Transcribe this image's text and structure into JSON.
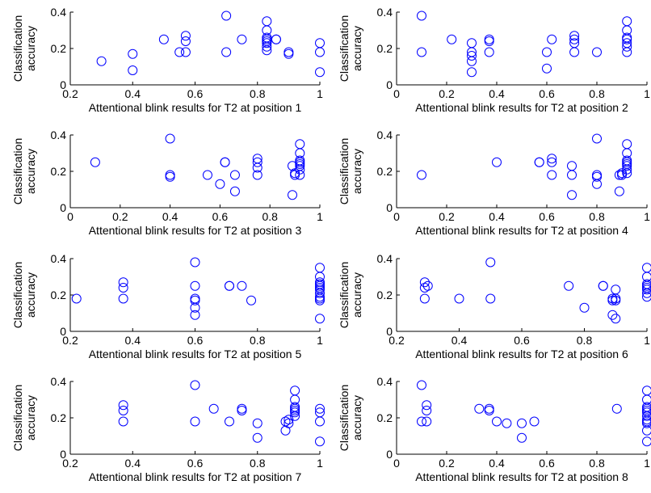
{
  "chart_data": [
    {
      "type": "scatter",
      "xlabel": "Attentional blink results for T2 at position 1",
      "ylabel": "Classification accuracy",
      "xlim": [
        0.2,
        1
      ],
      "ylim": [
        0,
        0.4
      ],
      "xticks": [
        "0.2",
        "0.4",
        "0.6",
        "0.8",
        "1"
      ],
      "yticks": [
        "0",
        "0.2",
        "0.4"
      ],
      "series": [
        {
          "color": "#0000ff",
          "x": [
            0.3,
            0.4,
            0.4,
            0.5,
            0.55,
            0.57,
            0.57,
            0.57,
            0.7,
            0.7,
            0.75,
            0.83,
            0.83,
            0.83,
            0.83,
            0.83,
            0.83,
            0.83,
            0.83,
            0.86,
            0.86,
            0.9,
            0.9,
            1,
            1,
            1
          ],
          "y": [
            0.13,
            0.17,
            0.08,
            0.25,
            0.18,
            0.27,
            0.24,
            0.18,
            0.38,
            0.18,
            0.25,
            0.35,
            0.3,
            0.26,
            0.25,
            0.24,
            0.23,
            0.21,
            0.19,
            0.25,
            0.25,
            0.18,
            0.17,
            0.23,
            0.18,
            0.07
          ]
        }
      ]
    },
    {
      "type": "scatter",
      "xlabel": "Attentional blink results for T2 at position 2",
      "ylabel": "Classification accuracy",
      "xlim": [
        0,
        1
      ],
      "ylim": [
        0,
        0.4
      ],
      "xticks": [
        "0",
        "0.2",
        "0.4",
        "0.6",
        "0.8",
        "1"
      ],
      "yticks": [
        "0",
        "0.2",
        "0.4"
      ],
      "series": [
        {
          "color": "#0000ff",
          "x": [
            0.1,
            0.1,
            0.22,
            0.3,
            0.3,
            0.3,
            0.3,
            0.3,
            0.37,
            0.37,
            0.37,
            0.6,
            0.6,
            0.62,
            0.71,
            0.71,
            0.71,
            0.71,
            0.8,
            0.92,
            0.92,
            0.92,
            0.92,
            0.92,
            0.92,
            0.92
          ],
          "y": [
            0.38,
            0.18,
            0.25,
            0.23,
            0.18,
            0.16,
            0.13,
            0.07,
            0.25,
            0.24,
            0.18,
            0.18,
            0.09,
            0.25,
            0.27,
            0.25,
            0.23,
            0.18,
            0.18,
            0.35,
            0.3,
            0.26,
            0.25,
            0.23,
            0.21,
            0.18
          ]
        }
      ]
    },
    {
      "type": "scatter",
      "xlabel": "Attentional blink results for T2 at position 3",
      "ylabel": "Classification accuracy",
      "xlim": [
        0,
        1
      ],
      "ylim": [
        0,
        0.4
      ],
      "xticks": [
        "0",
        "0.2",
        "0.4",
        "0.6",
        "0.8",
        "1"
      ],
      "yticks": [
        "0",
        "0.2",
        "0.4"
      ],
      "series": [
        {
          "color": "#0000ff",
          "x": [
            0.1,
            0.4,
            0.4,
            0.4,
            0.55,
            0.6,
            0.62,
            0.62,
            0.66,
            0.66,
            0.75,
            0.75,
            0.75,
            0.75,
            0.89,
            0.89,
            0.9,
            0.9,
            0.92,
            0.92,
            0.92,
            0.92,
            0.92,
            0.92,
            0.92,
            0.92
          ],
          "y": [
            0.25,
            0.38,
            0.18,
            0.17,
            0.18,
            0.13,
            0.25,
            0.25,
            0.18,
            0.09,
            0.27,
            0.25,
            0.22,
            0.18,
            0.23,
            0.07,
            0.19,
            0.18,
            0.35,
            0.3,
            0.26,
            0.25,
            0.24,
            0.23,
            0.21,
            0.18
          ]
        }
      ]
    },
    {
      "type": "scatter",
      "xlabel": "Attentional blink results for T2 at position 4",
      "ylabel": "Classification accuracy",
      "xlim": [
        0,
        1
      ],
      "ylim": [
        0,
        0.4
      ],
      "xticks": [
        "0",
        "0.2",
        "0.4",
        "0.6",
        "0.8",
        "1"
      ],
      "yticks": [
        "0",
        "0.2",
        "0.4"
      ],
      "series": [
        {
          "color": "#0000ff",
          "x": [
            0.1,
            0.4,
            0.57,
            0.57,
            0.62,
            0.62,
            0.62,
            0.7,
            0.7,
            0.7,
            0.8,
            0.8,
            0.8,
            0.8,
            0.89,
            0.89,
            0.9,
            0.9,
            0.92,
            0.92,
            0.92,
            0.92,
            0.92,
            0.92,
            0.92,
            0.92
          ],
          "y": [
            0.18,
            0.25,
            0.25,
            0.25,
            0.27,
            0.25,
            0.18,
            0.23,
            0.18,
            0.07,
            0.38,
            0.18,
            0.17,
            0.13,
            0.18,
            0.09,
            0.19,
            0.18,
            0.35,
            0.3,
            0.26,
            0.25,
            0.24,
            0.23,
            0.21,
            0.19
          ]
        }
      ]
    },
    {
      "type": "scatter",
      "xlabel": "Attentional blink results for T2 at position 5",
      "ylabel": "Classification accuracy",
      "xlim": [
        0.2,
        1
      ],
      "ylim": [
        0,
        0.4
      ],
      "xticks": [
        "0.2",
        "0.4",
        "0.6",
        "0.8",
        "1"
      ],
      "yticks": [
        "0",
        "0.2",
        "0.4"
      ],
      "series": [
        {
          "color": "#0000ff",
          "x": [
            0.22,
            0.37,
            0.37,
            0.37,
            0.6,
            0.6,
            0.6,
            0.6,
            0.6,
            0.6,
            0.71,
            0.71,
            0.75,
            0.78,
            1,
            1,
            1,
            1,
            1,
            1,
            1,
            1,
            1,
            1,
            1,
            1
          ],
          "y": [
            0.18,
            0.27,
            0.24,
            0.18,
            0.38,
            0.25,
            0.18,
            0.17,
            0.13,
            0.09,
            0.25,
            0.25,
            0.25,
            0.17,
            0.35,
            0.3,
            0.27,
            0.26,
            0.25,
            0.24,
            0.23,
            0.21,
            0.19,
            0.18,
            0.17,
            0.07
          ]
        }
      ]
    },
    {
      "type": "scatter",
      "xlabel": "Attentional blink results for T2 at position 6",
      "ylabel": "Classification accuracy",
      "xlim": [
        0.2,
        1
      ],
      "ylim": [
        0,
        0.4
      ],
      "xticks": [
        "0.2",
        "0.4",
        "0.6",
        "0.8",
        "1"
      ],
      "yticks": [
        "0",
        "0.2",
        "0.4"
      ],
      "series": [
        {
          "color": "#0000ff",
          "x": [
            0.29,
            0.29,
            0.29,
            0.3,
            0.4,
            0.5,
            0.5,
            0.75,
            0.8,
            0.86,
            0.86,
            0.89,
            0.89,
            0.89,
            0.9,
            0.9,
            0.9,
            0.9,
            1,
            1,
            1,
            1,
            1,
            1,
            1,
            1
          ],
          "y": [
            0.27,
            0.24,
            0.18,
            0.25,
            0.18,
            0.38,
            0.18,
            0.25,
            0.13,
            0.25,
            0.25,
            0.18,
            0.17,
            0.09,
            0.23,
            0.18,
            0.17,
            0.07,
            0.35,
            0.3,
            0.26,
            0.25,
            0.24,
            0.23,
            0.21,
            0.19
          ]
        }
      ]
    },
    {
      "type": "scatter",
      "xlabel": "Attentional blink results for T2 at position 7",
      "ylabel": "Classification accuracy",
      "xlim": [
        0.2,
        1
      ],
      "ylim": [
        0,
        0.4
      ],
      "xticks": [
        "0.2",
        "0.4",
        "0.6",
        "0.8",
        "1"
      ],
      "yticks": [
        "0",
        "0.2",
        "0.4"
      ],
      "series": [
        {
          "color": "#0000ff",
          "x": [
            0.37,
            0.37,
            0.37,
            0.6,
            0.6,
            0.66,
            0.71,
            0.75,
            0.75,
            0.8,
            0.8,
            0.89,
            0.89,
            0.9,
            0.9,
            0.92,
            0.92,
            0.92,
            0.92,
            0.92,
            0.92,
            0.92,
            1,
            1,
            1,
            1
          ],
          "y": [
            0.27,
            0.24,
            0.18,
            0.38,
            0.18,
            0.25,
            0.18,
            0.25,
            0.24,
            0.17,
            0.09,
            0.18,
            0.13,
            0.19,
            0.17,
            0.35,
            0.3,
            0.26,
            0.25,
            0.24,
            0.23,
            0.21,
            0.25,
            0.23,
            0.18,
            0.07
          ]
        }
      ]
    },
    {
      "type": "scatter",
      "xlabel": "Attentional blink results for T2 at position 8",
      "ylabel": "Classification accuracy",
      "xlim": [
        0,
        1
      ],
      "ylim": [
        0,
        0.4
      ],
      "xticks": [
        "0",
        "0.2",
        "0.4",
        "0.6",
        "0.8",
        "1"
      ],
      "yticks": [
        "0",
        "0.2",
        "0.4"
      ],
      "series": [
        {
          "color": "#0000ff",
          "x": [
            0.1,
            0.1,
            0.12,
            0.12,
            0.12,
            0.33,
            0.37,
            0.37,
            0.4,
            0.44,
            0.5,
            0.5,
            0.55,
            0.88,
            1,
            1,
            1,
            1,
            1,
            1,
            1,
            1,
            1,
            1,
            1,
            1
          ],
          "y": [
            0.38,
            0.18,
            0.27,
            0.24,
            0.18,
            0.25,
            0.25,
            0.24,
            0.18,
            0.17,
            0.17,
            0.09,
            0.18,
            0.25,
            0.35,
            0.3,
            0.26,
            0.25,
            0.24,
            0.23,
            0.21,
            0.19,
            0.18,
            0.17,
            0.13,
            0.07
          ]
        }
      ]
    }
  ]
}
